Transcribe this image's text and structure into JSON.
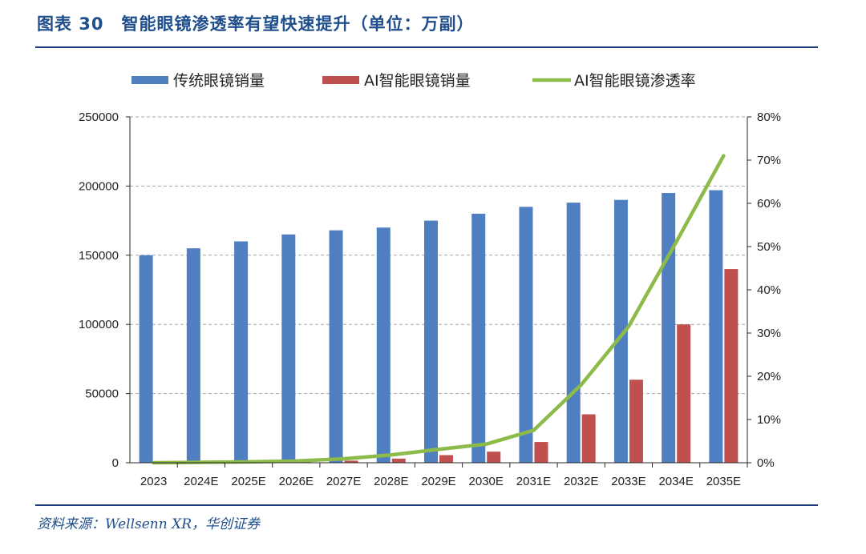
{
  "header": {
    "title": "图表 30　智能眼镜渗透率有望快速提升（单位：万副）"
  },
  "footer": {
    "source": "资料来源：Wellsenn XR，华创证券"
  },
  "colors": {
    "bar1": "#4f7fc0",
    "bar2": "#c0504d",
    "line": "#8dbb4a",
    "grid": "#a6a6a6",
    "axis": "#262626"
  },
  "chart_data": {
    "type": "bar",
    "title": "智能眼镜渗透率有望快速提升（单位：万副）",
    "categories": [
      "2023",
      "2024E",
      "2025E",
      "2026E",
      "2027E",
      "2028E",
      "2029E",
      "2030E",
      "2031E",
      "2032E",
      "2033E",
      "2034E",
      "2035E"
    ],
    "series": [
      {
        "name": "传统眼镜销量",
        "kind": "bar",
        "axis": "left",
        "values": [
          150000,
          155000,
          160000,
          165000,
          168000,
          170000,
          175000,
          180000,
          185000,
          188000,
          190000,
          195000,
          197000
        ]
      },
      {
        "name": "AI智能眼镜销量",
        "kind": "bar",
        "axis": "left",
        "values": [
          50,
          150,
          300,
          700,
          1500,
          3000,
          5500,
          8000,
          15000,
          35000,
          60000,
          100000,
          140000
        ]
      },
      {
        "name": "AI智能眼镜渗透率",
        "kind": "line",
        "axis": "right",
        "values": [
          0.0,
          0.1,
          0.2,
          0.4,
          0.9,
          1.8,
          3.1,
          4.3,
          7.5,
          18.0,
          31.5,
          51.0,
          71.0
        ]
      }
    ],
    "y_left": {
      "min": 0,
      "max": 250000,
      "ticks": [
        "0",
        "50000",
        "100000",
        "150000",
        "200000",
        "250000"
      ]
    },
    "y_right": {
      "min": 0,
      "max": 80,
      "ticks": [
        "0%",
        "10%",
        "20%",
        "30%",
        "40%",
        "50%",
        "60%",
        "70%",
        "80%"
      ]
    },
    "legend": {
      "position": "top"
    },
    "grid": true
  }
}
